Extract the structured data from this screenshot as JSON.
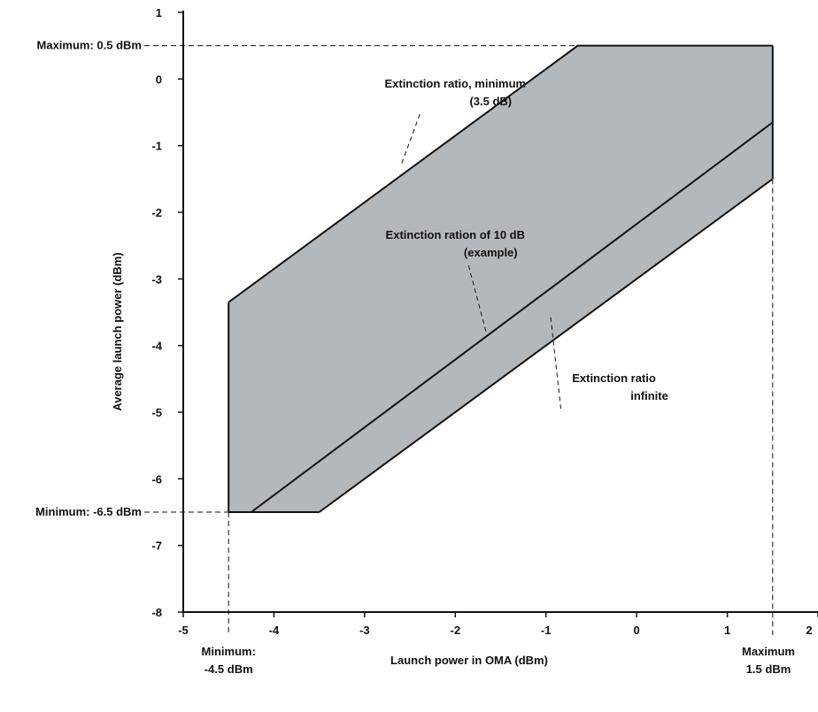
{
  "chart_data": {
    "type": "area",
    "xlabel": "Launch power in OMA (dBm)",
    "ylabel": "Average launch power (dBm)",
    "xlim": [
      -5,
      2
    ],
    "ylim": [
      -8,
      1
    ],
    "x_ticks": [
      "-5",
      "-4",
      "-3",
      "-2",
      "-1",
      "0",
      "1",
      "2"
    ],
    "y_ticks": [
      "1",
      "0",
      "-1",
      "-2",
      "-3",
      "-4",
      "-5",
      "-6",
      "-7",
      "-8"
    ],
    "region_color": "#b3b8bd",
    "region_polygon": [
      {
        "x": -4.5,
        "y": -3.35
      },
      {
        "x": -0.65,
        "y": 0.5
      },
      {
        "x": 1.5,
        "y": 0.5
      },
      {
        "x": 1.5,
        "y": -1.5
      },
      {
        "x": -3.5,
        "y": -6.5
      },
      {
        "x": -4.5,
        "y": -6.5
      }
    ],
    "series": [
      {
        "x": [
          -4.5,
          -0.65,
          1.5
        ],
        "y": [
          -3.35,
          0.5,
          0.5
        ]
      },
      {
        "x": [
          -4.25,
          1.5
        ],
        "y": [
          -6.5,
          -0.65
        ]
      },
      {
        "x": [
          -3.5,
          1.5
        ],
        "y": [
          -6.5,
          -1.5
        ]
      }
    ],
    "reference_lines": [
      {
        "type": "horizontal",
        "y": 0.5,
        "label": "Maximum: 0.5 dBm"
      },
      {
        "type": "horizontal",
        "y": -6.5,
        "label": "Minimum: -6.5 dBm"
      },
      {
        "type": "vertical",
        "x": -4.5,
        "label_lines": [
          "Minimum:",
          "-4.5 dBm"
        ]
      },
      {
        "type": "vertical",
        "x": 1.5,
        "label_lines": [
          "Maximum",
          "1.5 dBm"
        ]
      }
    ],
    "annotations": [
      {
        "lines": [
          "Extinction ratio, minimum",
          "(3.5 dB)"
        ],
        "x": -2.0,
        "y": -0.13,
        "pointer_to": {
          "x": -2.6,
          "y": -1.3
        }
      },
      {
        "lines": [
          "Extinction ration of 10 dB",
          "(example)"
        ],
        "x": -2.0,
        "y": -2.4,
        "pointer_to": {
          "x": -1.65,
          "y": -3.85
        }
      },
      {
        "lines": [
          "Extinction ratio",
          "infinite"
        ],
        "x": -0.25,
        "y": -4.55,
        "pointer_to": {
          "x": -0.95,
          "y": -3.55
        }
      }
    ],
    "grid": false,
    "legend": "none"
  }
}
